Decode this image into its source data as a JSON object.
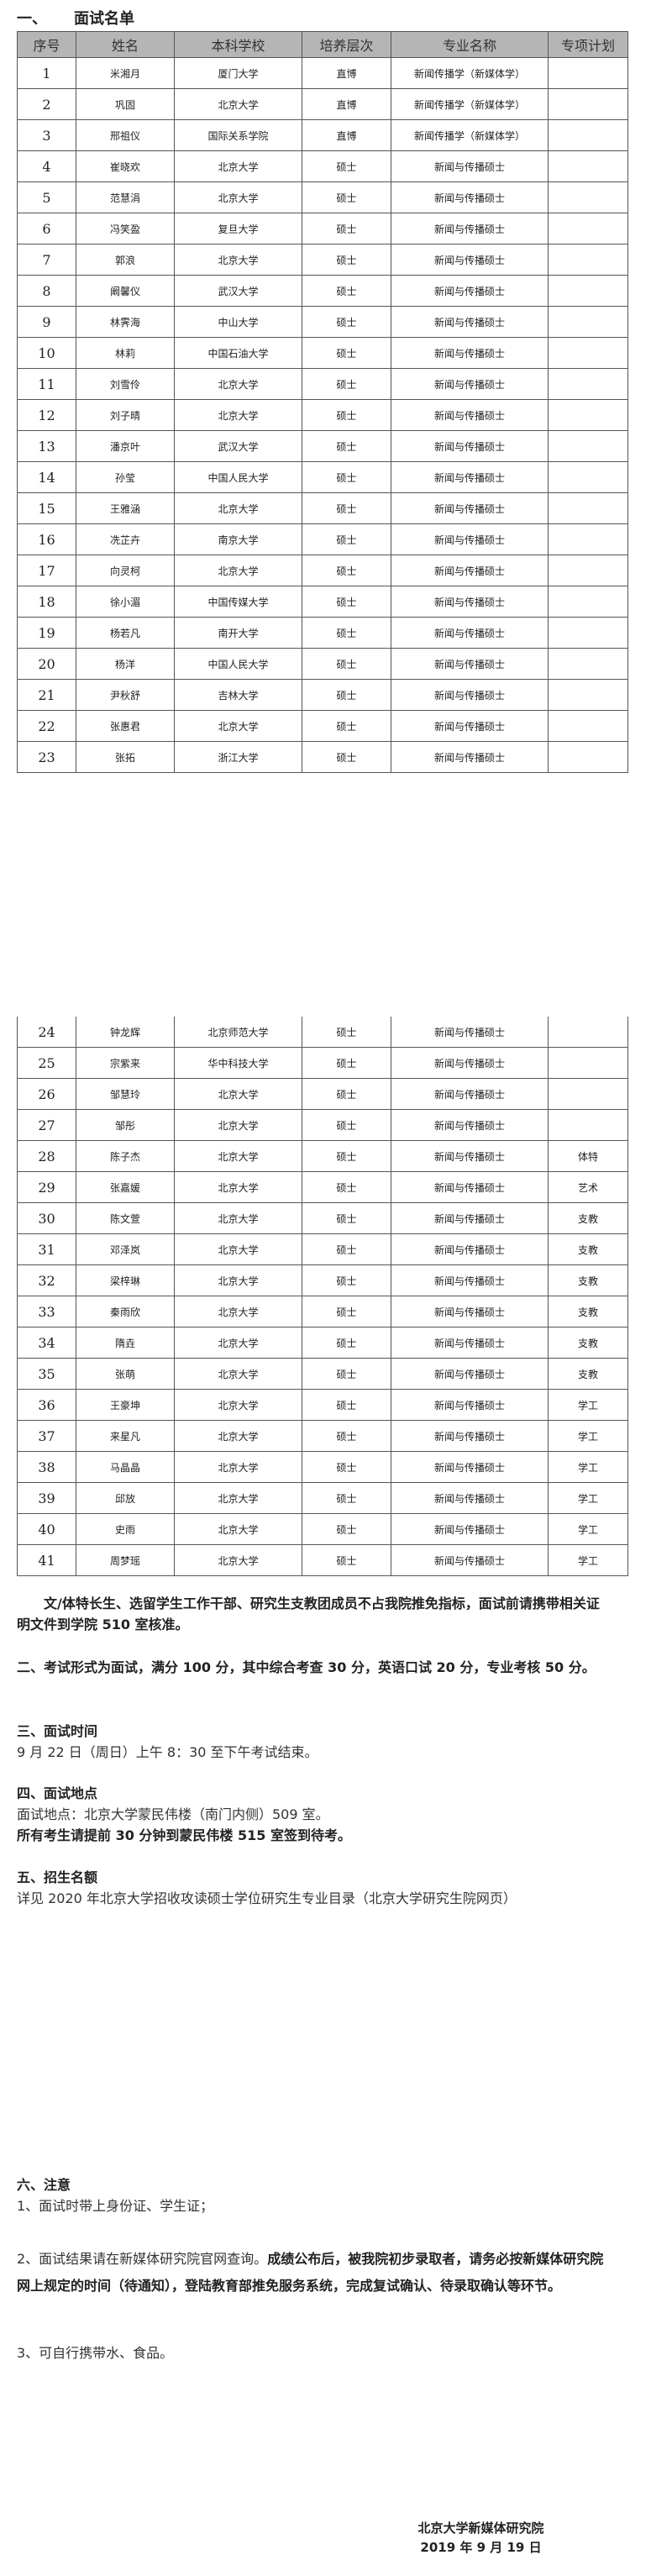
{
  "section1": {
    "num": "一、",
    "title": "面试名单"
  },
  "table": {
    "headers": [
      "序号",
      "姓名",
      "本科学校",
      "培养层次",
      "专业名称",
      "专项计划"
    ],
    "rows": [
      [
        "1",
        "米湘月",
        "厦门大学",
        "直博",
        "新闻传播学（新媒体学）",
        ""
      ],
      [
        "2",
        "巩固",
        "北京大学",
        "直博",
        "新闻传播学（新媒体学）",
        ""
      ],
      [
        "3",
        "邢祖仪",
        "国际关系学院",
        "直博",
        "新闻传播学（新媒体学）",
        ""
      ],
      [
        "4",
        "崔晓欢",
        "北京大学",
        "硕士",
        "新闻与传播硕士",
        ""
      ],
      [
        "5",
        "范慧涓",
        "北京大学",
        "硕士",
        "新闻与传播硕士",
        ""
      ],
      [
        "6",
        "冯笑盈",
        "复旦大学",
        "硕士",
        "新闻与传播硕士",
        ""
      ],
      [
        "7",
        "郭浪",
        "北京大学",
        "硕士",
        "新闻与传播硕士",
        ""
      ],
      [
        "8",
        "阚馨仪",
        "武汉大学",
        "硕士",
        "新闻与传播硕士",
        ""
      ],
      [
        "9",
        "林霁海",
        "中山大学",
        "硕士",
        "新闻与传播硕士",
        ""
      ],
      [
        "10",
        "林莉",
        "中国石油大学",
        "硕士",
        "新闻与传播硕士",
        ""
      ],
      [
        "11",
        "刘雪伶",
        "北京大学",
        "硕士",
        "新闻与传播硕士",
        ""
      ],
      [
        "12",
        "刘子晴",
        "北京大学",
        "硕士",
        "新闻与传播硕士",
        ""
      ],
      [
        "13",
        "潘京叶",
        "武汉大学",
        "硕士",
        "新闻与传播硕士",
        ""
      ],
      [
        "14",
        "孙莹",
        "中国人民大学",
        "硕士",
        "新闻与传播硕士",
        ""
      ],
      [
        "15",
        "王雅涵",
        "北京大学",
        "硕士",
        "新闻与传播硕士",
        ""
      ],
      [
        "16",
        "冼芷卉",
        "南京大学",
        "硕士",
        "新闻与传播硕士",
        ""
      ],
      [
        "17",
        "向灵柯",
        "北京大学",
        "硕士",
        "新闻与传播硕士",
        ""
      ],
      [
        "18",
        "徐小湄",
        "中国传媒大学",
        "硕士",
        "新闻与传播硕士",
        ""
      ],
      [
        "19",
        "杨若凡",
        "南开大学",
        "硕士",
        "新闻与传播硕士",
        ""
      ],
      [
        "20",
        "杨洋",
        "中国人民大学",
        "硕士",
        "新闻与传播硕士",
        ""
      ],
      [
        "21",
        "尹秋舒",
        "吉林大学",
        "硕士",
        "新闻与传播硕士",
        ""
      ],
      [
        "22",
        "张惠君",
        "北京大学",
        "硕士",
        "新闻与传播硕士",
        ""
      ],
      [
        "23",
        "张拓",
        "浙江大学",
        "硕士",
        "新闻与传播硕士",
        ""
      ],
      [
        "24",
        "钟龙辉",
        "北京师范大学",
        "硕士",
        "新闻与传播硕士",
        ""
      ],
      [
        "25",
        "宗紫来",
        "华中科技大学",
        "硕士",
        "新闻与传播硕士",
        ""
      ],
      [
        "26",
        "邹慧玲",
        "北京大学",
        "硕士",
        "新闻与传播硕士",
        ""
      ],
      [
        "27",
        "邹彤",
        "北京大学",
        "硕士",
        "新闻与传播硕士",
        ""
      ],
      [
        "28",
        "陈子杰",
        "北京大学",
        "硕士",
        "新闻与传播硕士",
        "体特"
      ],
      [
        "29",
        "张嘉媛",
        "北京大学",
        "硕士",
        "新闻与传播硕士",
        "艺术"
      ],
      [
        "30",
        "陈文萱",
        "北京大学",
        "硕士",
        "新闻与传播硕士",
        "支教"
      ],
      [
        "31",
        "邓泽岚",
        "北京大学",
        "硕士",
        "新闻与传播硕士",
        "支教"
      ],
      [
        "32",
        "梁梓琳",
        "北京大学",
        "硕士",
        "新闻与传播硕士",
        "支教"
      ],
      [
        "33",
        "秦雨欣",
        "北京大学",
        "硕士",
        "新闻与传播硕士",
        "支教"
      ],
      [
        "34",
        "隋垚",
        "北京大学",
        "硕士",
        "新闻与传播硕士",
        "支教"
      ],
      [
        "35",
        "张萌",
        "北京大学",
        "硕士",
        "新闻与传播硕士",
        "支教"
      ],
      [
        "36",
        "王豪坤",
        "北京大学",
        "硕士",
        "新闻与传播硕士",
        "学工"
      ],
      [
        "37",
        "来星凡",
        "北京大学",
        "硕士",
        "新闻与传播硕士",
        "学工"
      ],
      [
        "38",
        "马晶晶",
        "北京大学",
        "硕士",
        "新闻与传播硕士",
        "学工"
      ],
      [
        "39",
        "邱放",
        "北京大学",
        "硕士",
        "新闻与传播硕士",
        "学工"
      ],
      [
        "40",
        "史雨",
        "北京大学",
        "硕士",
        "新闻与传播硕士",
        "学工"
      ],
      [
        "41",
        "周梦瑶",
        "北京大学",
        "硕士",
        "新闻与传播硕士",
        "学工"
      ]
    ]
  },
  "note": "文/体特长生、选留学生工作干部、研究生支教团成员不占我院推免指标，面试前请携带相关证明文件到学院 510 室核准。",
  "section2": {
    "text": "二、考试形式为面试，满分 100 分，其中综合考查 30 分，英语口试 20 分，专业考核 50 分。"
  },
  "section3": {
    "title": "三、面试时间",
    "text": "9 月 22 日（周日）上午 8：30 至下午考试结束。"
  },
  "section4": {
    "title": "四、面试地点",
    "text": "面试地点：北京大学蒙民伟楼（南门内侧）509 室。",
    "bold": "所有考生请提前 30 分钟到蒙民伟楼 515 室签到待考。"
  },
  "section5": {
    "title": "五、招生名额",
    "text": "详见 2020 年北京大学招收攻读硕士学位研究生专业目录（北京大学研究生院网页）"
  },
  "section6": {
    "title": "六、注意",
    "item1": "1、面试时带上身份证、学生证；",
    "item2_normal": "2、面试结果请在新媒体研究院官网查询。",
    "item2_bold": "成绩公布后，被我院初步录取者，请务必按新媒体研究院网上规定的时间（待通知），登陆教育部推免服务系统，完成复试确认、待录取确认等环节。",
    "item3": "3、可自行携带水、食品。"
  },
  "signature": {
    "org": "北京大学新媒体研究院",
    "date": "2019 年 9 月 19 日"
  }
}
